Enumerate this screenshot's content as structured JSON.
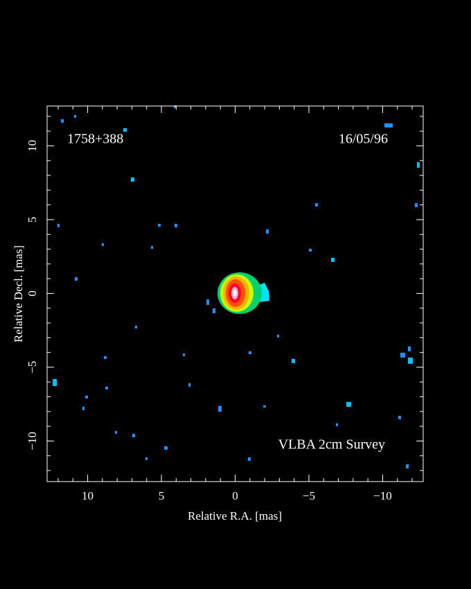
{
  "chart_data": {
    "type": "image",
    "title": "1758+388",
    "date": "16/05/96",
    "annotation": "VLBA 2cm Survey",
    "xlabel": "Relative R.A. [mas]",
    "ylabel": "Relative Decl. [mas]",
    "xlim": [
      12.75,
      -12.75
    ],
    "ylim": [
      -12.75,
      12.7
    ],
    "xticks": [
      10,
      5,
      0,
      {
        "value": -5,
        "label": "−5"
      },
      {
        "value": -10,
        "label": "−10"
      }
    ],
    "yticks": [
      {
        "value": -10,
        "label": "−10"
      },
      {
        "value": -5,
        "label": "−5"
      },
      0,
      5,
      10
    ]
  }
}
